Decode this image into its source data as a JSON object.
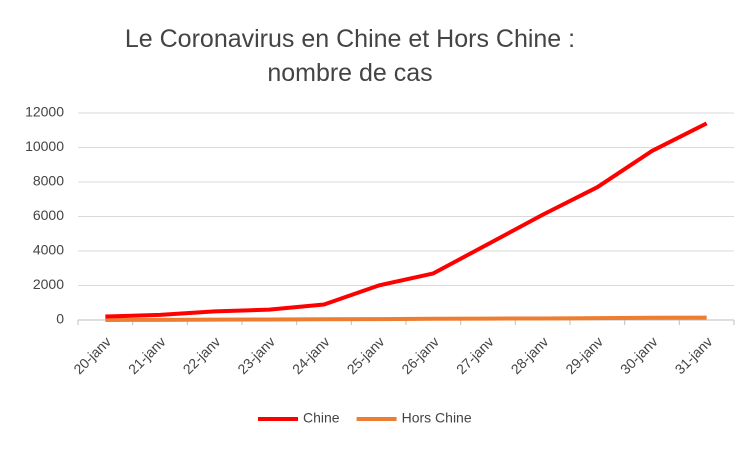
{
  "chart_data": {
    "type": "line",
    "title": "Le Coronavirus en Chine et Hors Chine : nombre de cas",
    "categories": [
      "20-janv",
      "21-janv",
      "22-janv",
      "23-janv",
      "24-janv",
      "25-janv",
      "26-janv",
      "27-janv",
      "28-janv",
      "29-janv",
      "30-janv",
      "31-janv"
    ],
    "series": [
      {
        "name": "Chine",
        "color": "#ff0000",
        "values": [
          200,
          300,
          500,
          600,
          900,
          2000,
          2700,
          4400,
          6100,
          7700,
          9800,
          11400
        ]
      },
      {
        "name": "Hors Chine",
        "color": "#ed7d31",
        "values": [
          0,
          10,
          20,
          30,
          40,
          50,
          70,
          80,
          90,
          110,
          130,
          140
        ]
      }
    ],
    "ylim": [
      0,
      12000
    ],
    "yticks": [
      0,
      2000,
      4000,
      6000,
      8000,
      10000,
      12000
    ],
    "grid": true,
    "legend": "bottom"
  }
}
